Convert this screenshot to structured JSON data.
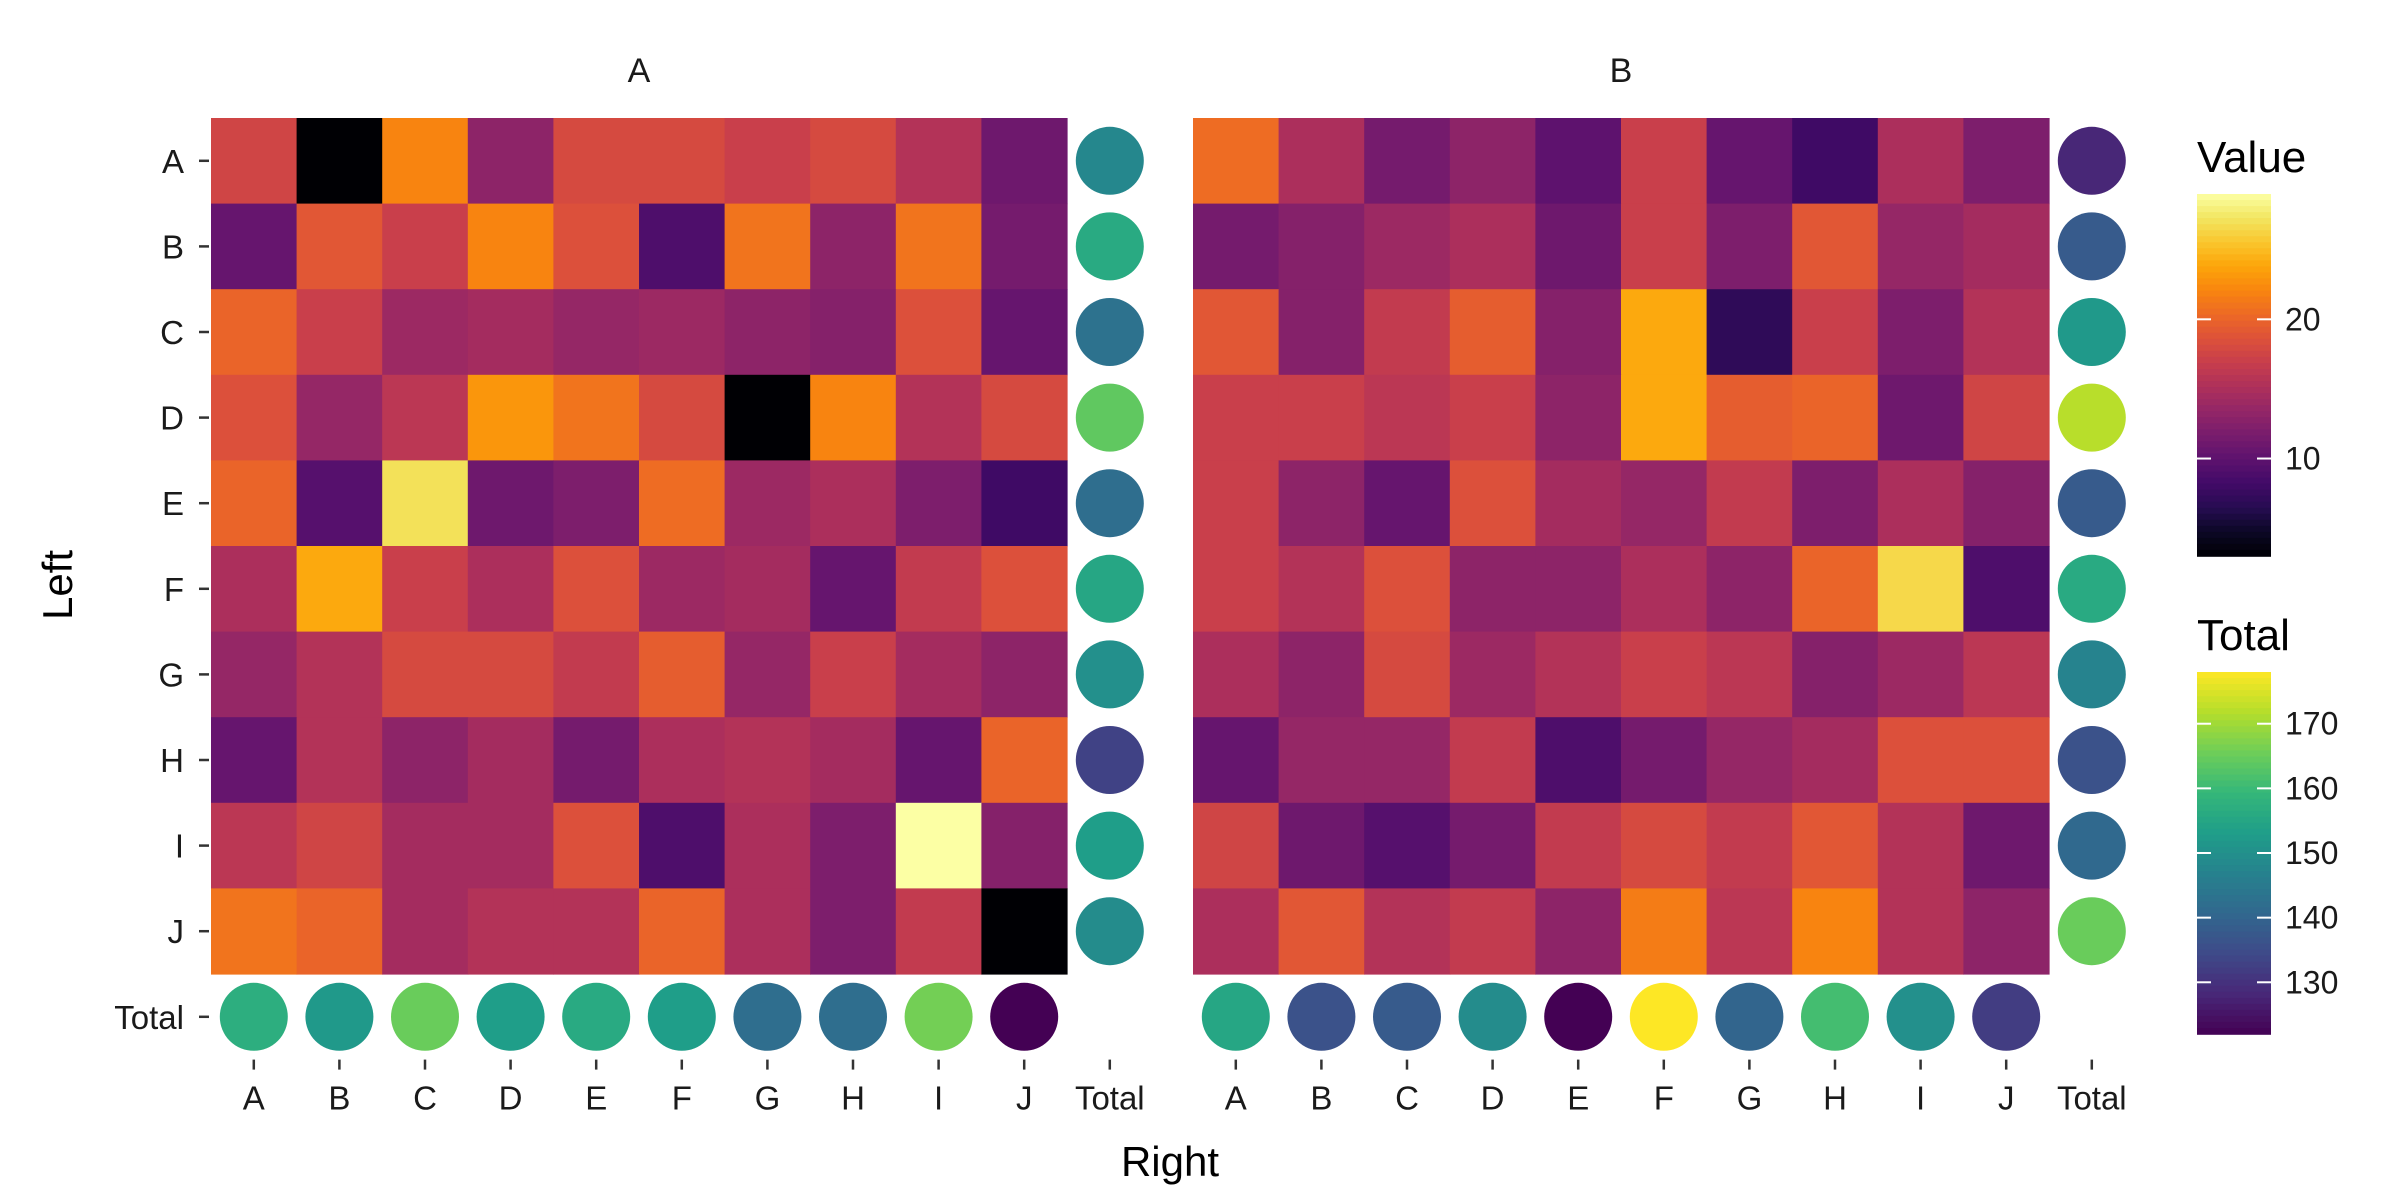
{
  "chart_data": {
    "type": "heatmap",
    "xlabel": "Right",
    "ylabel": "Left",
    "x_categories": [
      "A",
      "B",
      "C",
      "D",
      "E",
      "F",
      "G",
      "H",
      "I",
      "J"
    ],
    "y_categories": [
      "A",
      "B",
      "C",
      "D",
      "E",
      "F",
      "G",
      "H",
      "I",
      "J"
    ],
    "total_label": "Total",
    "value_legend": {
      "title": "Value",
      "range": [
        3,
        29
      ],
      "ticks": [
        10,
        20
      ],
      "palette": "inferno"
    },
    "total_legend": {
      "title": "Total",
      "range": [
        122,
        178
      ],
      "ticks": [
        130,
        140,
        150,
        160,
        170
      ],
      "palette": "viridis"
    },
    "facets": [
      {
        "title": "A",
        "values": [
          [
            17.5,
            3,
            22,
            13,
            18,
            18,
            17,
            18,
            15.5,
            11
          ],
          [
            10.5,
            19,
            17,
            22,
            18.5,
            9,
            21,
            13,
            21,
            11.5
          ],
          [
            20,
            17,
            14,
            14.5,
            13.5,
            14,
            13,
            12.5,
            18.5,
            10.5
          ],
          [
            18.5,
            13.5,
            16,
            23,
            21,
            18,
            3,
            22,
            15.5,
            18
          ],
          [
            20,
            9.5,
            27,
            11,
            12,
            20.5,
            14,
            15,
            12,
            8
          ],
          [
            15,
            24,
            17,
            15,
            18.5,
            14,
            14.5,
            10.5,
            16.5,
            18.5
          ],
          [
            13.5,
            15.5,
            18,
            18,
            16.5,
            19.5,
            13.5,
            17,
            14.5,
            13
          ],
          [
            10.5,
            15.5,
            13,
            14.5,
            11.5,
            15,
            15.5,
            14.5,
            10.5,
            20
          ],
          [
            16,
            17.5,
            14.5,
            14.5,
            18.5,
            9,
            15,
            12,
            29,
            12.5
          ],
          [
            21,
            20,
            14.5,
            15.5,
            15.5,
            20,
            15,
            12,
            16.5,
            3
          ]
        ],
        "row_totals": [
          148,
          156,
          143,
          164,
          142,
          155,
          150,
          133,
          153,
          149
        ],
        "col_totals": [
          157,
          152,
          165,
          153,
          156,
          153,
          142,
          142,
          166,
          122
        ]
      },
      {
        "title": "B",
        "values": [
          [
            20.5,
            15,
            11.5,
            13,
            10,
            17,
            10.5,
            8,
            15,
            12
          ],
          [
            11.5,
            12.5,
            14,
            15,
            11,
            17,
            12,
            19,
            13.5,
            14.5
          ],
          [
            19,
            12.5,
            16.5,
            19.5,
            12.5,
            24,
            7,
            17,
            12,
            15.5
          ],
          [
            17,
            17,
            16,
            17,
            13,
            24,
            19.5,
            20,
            11,
            17.5
          ],
          [
            17,
            13,
            10.5,
            18.5,
            14.5,
            13.5,
            16.5,
            12,
            15,
            12.5
          ],
          [
            17,
            15.5,
            18.5,
            13,
            13,
            15,
            13,
            20,
            26.5,
            9
          ],
          [
            15,
            13,
            18,
            14,
            15.5,
            17,
            16,
            12.5,
            14,
            16
          ],
          [
            10.5,
            13.5,
            13.5,
            16.5,
            9,
            11.5,
            13.5,
            14.5,
            18.5,
            18.5
          ],
          [
            17.5,
            11,
            9.5,
            11.5,
            16.5,
            18,
            16.5,
            19,
            15.5,
            11
          ],
          [
            15,
            19,
            15.5,
            16.5,
            13,
            21.5,
            16,
            22,
            15.5,
            13
          ]
        ],
        "row_totals": [
          128,
          138,
          152,
          172,
          138,
          156,
          147,
          136,
          141,
          165
        ],
        "col_totals": [
          155,
          136,
          138,
          149,
          122,
          178,
          140,
          161,
          150,
          132
        ]
      }
    ]
  }
}
